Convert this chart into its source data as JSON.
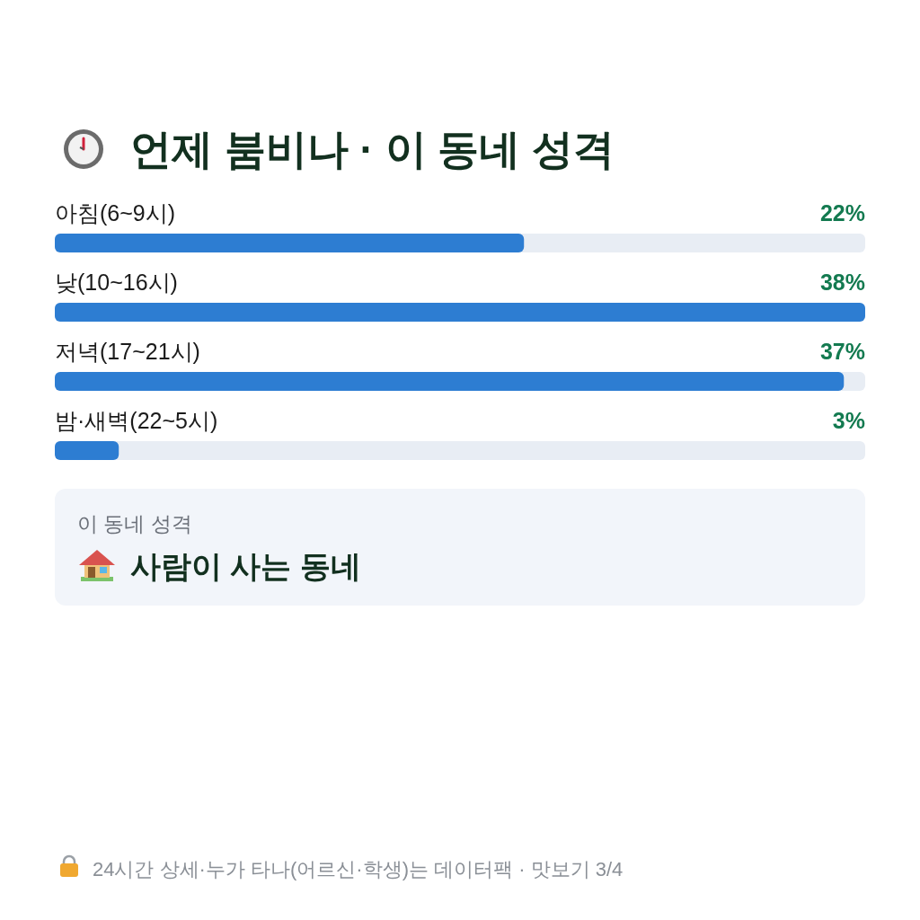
{
  "chart_data": [
    {
      "type": "bar",
      "orientation": "horizontal",
      "title": "언제 붐비나 · 이 동네 성격",
      "categories": [
        "아침(6~9시)",
        "낮(10~16시)",
        "저녁(17~21시)",
        "밤·새벽(22~5시)"
      ],
      "values": [
        22,
        38,
        37,
        3
      ],
      "value_labels": [
        "22%",
        "38%",
        "37%",
        "3%"
      ],
      "color": "#2d7dd2",
      "annotations": [
        "24시간 상세·누가 타나(어르신·학생)는 데이터팩 · 맛보기 3/4"
      ]
    },
    {
      "type": "other",
      "subtitle": "이 동네 성격",
      "title": "사람이 사는 동네"
    }
  ]
}
